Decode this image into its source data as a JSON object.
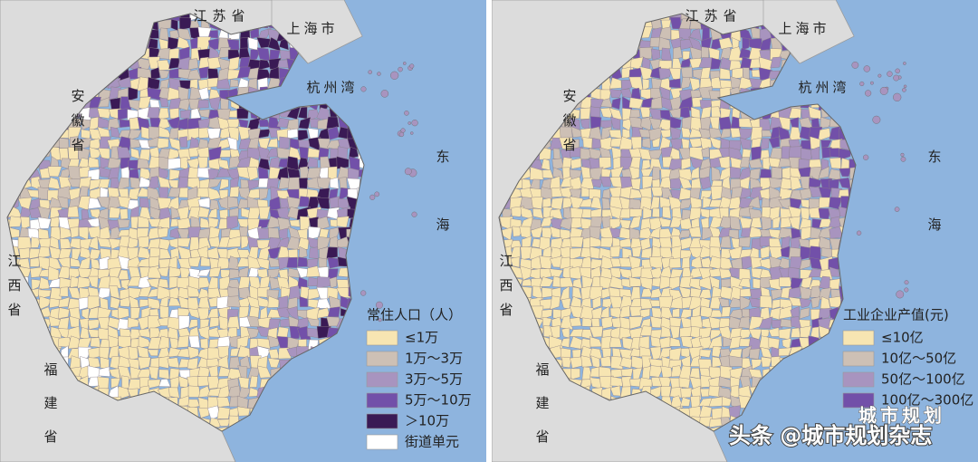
{
  "panels": [
    {
      "places": {
        "jiangsu": "江苏省",
        "shanghai": "上海市",
        "hangzhou_bay": "杭州湾",
        "anhui": "安徽省",
        "jiangxi": "江西省",
        "fujian": "福建省",
        "east_sea": "东海"
      },
      "legend": {
        "title": "常住人口（人）",
        "items": [
          {
            "label": "≤1万",
            "color": "#f7e5b2"
          },
          {
            "label": "1万～3万",
            "color": "#cdc0b5"
          },
          {
            "label": "3万～5万",
            "color": "#a894bf"
          },
          {
            "label": "5万～10万",
            "color": "#7250a9"
          },
          {
            "label": "＞10万",
            "color": "#3a1a55"
          },
          {
            "label": "街道单元",
            "color": "#ffffff"
          }
        ]
      }
    },
    {
      "places": {
        "jiangsu": "江苏省",
        "shanghai": "上海市",
        "hangzhou_bay": "杭州湾",
        "anhui": "安徽省",
        "jiangxi": "江西省",
        "fujian": "福建省",
        "east_sea": "东海"
      },
      "legend": {
        "title": "工业企业产值(元)",
        "items": [
          {
            "label": "≤10亿",
            "color": "#f7e5b2"
          },
          {
            "label": "10亿～50亿",
            "color": "#cdc0b5"
          },
          {
            "label": "50亿～100亿",
            "color": "#a894bf"
          },
          {
            "label": "100亿～300亿",
            "color": "#7250a9"
          }
        ]
      }
    }
  ],
  "watermark": {
    "badge": "城市规划",
    "text": "头条 @城市规划杂志"
  }
}
